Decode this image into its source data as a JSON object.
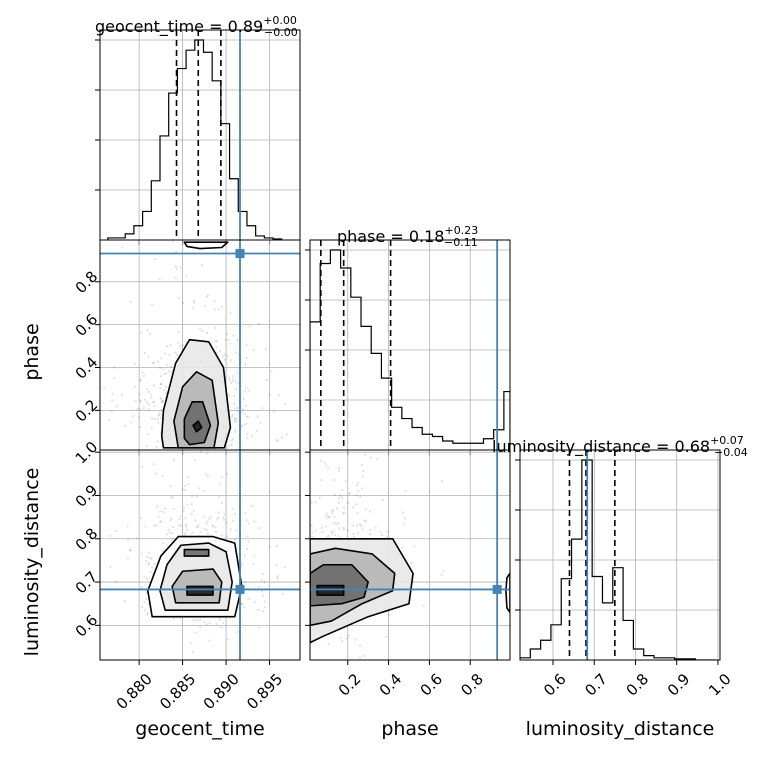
{
  "chart_data": {
    "type": "corner",
    "parameters": [
      "geocent_time",
      "phase",
      "luminosity_distance"
    ],
    "truths": {
      "geocent_time": 0.8916,
      "phase": 0.932,
      "luminosity_distance": 0.683
    },
    "truth_color": "#4682b4",
    "titles": [
      {
        "param": "geocent_time",
        "lhs": "geocent_time = 0.89",
        "sup": "+0.00",
        "sub": "−0.00"
      },
      {
        "param": "phase",
        "lhs": "phase = 0.18",
        "sup": "+0.23",
        "sub": "−0.11"
      },
      {
        "param": "luminosity_distance",
        "lhs": "luminosity_distance = 0.68",
        "sup": "+0.07",
        "sub": "−0.04"
      }
    ],
    "axes": {
      "geocent_time": {
        "range": [
          0.8755,
          0.8985
        ],
        "ticks": [
          0.88,
          0.885,
          0.89,
          0.895
        ],
        "tick_labels": [
          "0.880",
          "0.885",
          "0.890",
          "0.895"
        ],
        "xlabel": "geocent_time"
      },
      "phase": {
        "range": [
          0.015,
          0.995
        ],
        "ticks": [
          0.2,
          0.4,
          0.6,
          0.8
        ],
        "tick_labels": [
          "0.2",
          "0.4",
          "0.6",
          "0.8"
        ],
        "label": "phase"
      },
      "luminosity_distance": {
        "range": [
          0.52,
          1.005
        ],
        "ticks": [
          0.6,
          0.7,
          0.8,
          0.9,
          1.0
        ],
        "tick_labels": [
          "0.6",
          "0.7",
          "0.8",
          "0.9",
          "1.0"
        ],
        "label": "luminosity_distance"
      }
    },
    "quantiles": {
      "geocent_time": [
        0.8843,
        0.8868,
        0.8894
      ],
      "phase": [
        0.068,
        0.18,
        0.41
      ],
      "luminosity_distance": [
        0.64,
        0.68,
        0.75
      ]
    },
    "histograms": {
      "geocent_time": {
        "edges": [
          0.8764,
          0.8774,
          0.8784,
          0.8794,
          0.8804,
          0.8814,
          0.8824,
          0.8834,
          0.8844,
          0.8854,
          0.8864,
          0.8874,
          0.8884,
          0.8894,
          0.8904,
          0.8914,
          0.8924,
          0.8934,
          0.8944,
          0.8954,
          0.8964
        ],
        "counts": [
          0.01,
          0.01,
          0.03,
          0.07,
          0.14,
          0.29,
          0.51,
          0.72,
          0.84,
          0.93,
          0.98,
          0.92,
          0.78,
          0.57,
          0.3,
          0.14,
          0.07,
          0.02,
          0.01,
          0.005
        ]
      },
      "phase": {
        "edges": [
          0.015,
          0.065,
          0.115,
          0.165,
          0.215,
          0.265,
          0.315,
          0.365,
          0.415,
          0.465,
          0.515,
          0.565,
          0.615,
          0.665,
          0.715,
          0.765,
          0.815,
          0.865,
          0.915,
          0.965,
          0.995
        ],
        "counts": [
          0.57,
          0.83,
          0.89,
          0.81,
          0.68,
          0.55,
          0.43,
          0.32,
          0.19,
          0.14,
          0.1,
          0.07,
          0.06,
          0.04,
          0.03,
          0.03,
          0.03,
          0.05,
          0.09,
          0.26
        ]
      },
      "luminosity_distance": {
        "edges": [
          0.52,
          0.545,
          0.57,
          0.595,
          0.62,
          0.645,
          0.67,
          0.695,
          0.72,
          0.745,
          0.77,
          0.795,
          0.82,
          0.845,
          0.87,
          0.895,
          0.92,
          0.945,
          0.97,
          0.995
        ],
        "counts": [
          0.01,
          0.05,
          0.09,
          0.16,
          0.37,
          0.55,
          0.91,
          0.38,
          0.26,
          0.42,
          0.18,
          0.05,
          0.02,
          0.01,
          0.01,
          0.005,
          0.005,
          0.0,
          0.0
        ]
      }
    },
    "joint_posteriors": [
      {
        "x": "geocent_time",
        "y": "phase",
        "mode": [
          0.8868,
          0.13
        ],
        "contours": [
          [
            [
              0.8866,
              0.1
            ],
            [
              0.8872,
              0.12
            ],
            [
              0.8868,
              0.15
            ],
            [
              0.8862,
              0.13
            ]
          ],
          [
            [
              0.8858,
              0.04
            ],
            [
              0.8875,
              0.05
            ],
            [
              0.8882,
              0.13
            ],
            [
              0.8873,
              0.24
            ],
            [
              0.8861,
              0.24
            ],
            [
              0.8852,
              0.16
            ],
            [
              0.8852,
              0.07
            ]
          ],
          [
            [
              0.8845,
              0.025
            ],
            [
              0.8886,
              0.025
            ],
            [
              0.8891,
              0.14
            ],
            [
              0.8884,
              0.34
            ],
            [
              0.8866,
              0.38
            ],
            [
              0.885,
              0.31
            ],
            [
              0.884,
              0.15
            ]
          ],
          [
            [
              0.8828,
              0.025
            ],
            [
              0.8898,
              0.025
            ],
            [
              0.8905,
              0.12
            ],
            [
              0.8897,
              0.4
            ],
            [
              0.888,
              0.52
            ],
            [
              0.8858,
              0.53
            ],
            [
              0.8842,
              0.42
            ],
            [
              0.8828,
              0.2
            ],
            [
              0.8826,
              0.08
            ]
          ],
          [
            [
              0.8852,
              0.985
            ],
            [
              0.8902,
              0.985
            ],
            [
              0.8895,
              0.96
            ],
            [
              0.887,
              0.955
            ],
            [
              0.8855,
              0.965
            ]
          ]
        ]
      },
      {
        "x": "geocent_time",
        "y": "luminosity_distance",
        "mode": [
          0.8868,
          0.68
        ],
        "contours": [
          [
            [
              0.8855,
              0.67
            ],
            [
              0.8885,
              0.67
            ],
            [
              0.8885,
              0.69
            ],
            [
              0.8855,
              0.69
            ]
          ],
          [
            [
              0.8852,
              0.76
            ],
            [
              0.888,
              0.76
            ],
            [
              0.888,
              0.775
            ],
            [
              0.8852,
              0.775
            ]
          ],
          [
            [
              0.8842,
              0.652
            ],
            [
              0.8892,
              0.652
            ],
            [
              0.8895,
              0.7
            ],
            [
              0.8885,
              0.73
            ],
            [
              0.885,
              0.725
            ],
            [
              0.8838,
              0.69
            ]
          ],
          [
            [
              0.883,
              0.635
            ],
            [
              0.8902,
              0.635
            ],
            [
              0.8907,
              0.7
            ],
            [
              0.89,
              0.77
            ],
            [
              0.888,
              0.79
            ],
            [
              0.8848,
              0.785
            ],
            [
              0.8832,
              0.74
            ],
            [
              0.8824,
              0.68
            ]
          ],
          [
            [
              0.8815,
              0.62
            ],
            [
              0.891,
              0.62
            ],
            [
              0.8918,
              0.69
            ],
            [
              0.891,
              0.79
            ],
            [
              0.8885,
              0.805
            ],
            [
              0.8845,
              0.805
            ],
            [
              0.8825,
              0.76
            ],
            [
              0.881,
              0.68
            ]
          ]
        ]
      },
      {
        "x": "phase",
        "y": "luminosity_distance",
        "mode": [
          0.12,
          0.68
        ],
        "contours": [
          [
            [
              0.05,
              0.67
            ],
            [
              0.18,
              0.67
            ],
            [
              0.18,
              0.692
            ],
            [
              0.05,
              0.692
            ]
          ],
          [
            [
              0.015,
              0.645
            ],
            [
              0.17,
              0.65
            ],
            [
              0.28,
              0.665
            ],
            [
              0.3,
              0.7
            ],
            [
              0.22,
              0.74
            ],
            [
              0.08,
              0.74
            ],
            [
              0.015,
              0.72
            ]
          ],
          [
            [
              0.015,
              0.6
            ],
            [
              0.12,
              0.61
            ],
            [
              0.27,
              0.65
            ],
            [
              0.42,
              0.68
            ],
            [
              0.43,
              0.72
            ],
            [
              0.32,
              0.765
            ],
            [
              0.14,
              0.778
            ],
            [
              0.015,
              0.765
            ]
          ],
          [
            [
              0.015,
              0.56
            ],
            [
              0.08,
              0.575
            ],
            [
              0.3,
              0.62
            ],
            [
              0.5,
              0.65
            ],
            [
              0.52,
              0.72
            ],
            [
              0.42,
              0.8
            ],
            [
              0.18,
              0.8
            ],
            [
              0.015,
              0.8
            ]
          ],
          [
            [
              0.98,
              0.64
            ],
            [
              0.995,
              0.63
            ],
            [
              0.995,
              0.72
            ],
            [
              0.98,
              0.71
            ],
            [
              0.975,
              0.68
            ]
          ]
        ]
      }
    ],
    "grid": true
  }
}
